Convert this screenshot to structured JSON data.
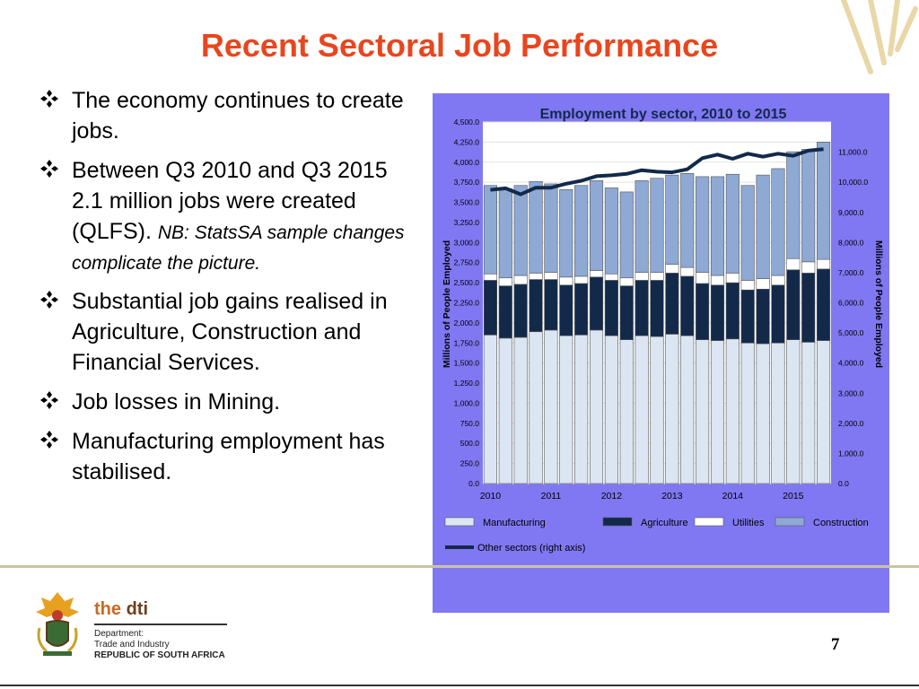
{
  "slide": {
    "title": "Recent Sectoral Job Performance",
    "page_number": "7",
    "bullets": [
      {
        "text": "The economy continues to create jobs.",
        "note": ""
      },
      {
        "text": "Between Q3 2010 and Q3 2015 2.1 million jobs were created (QLFS).",
        "note": "NB: StatsSA sample changes complicate the picture."
      },
      {
        "text": "Substantial job gains realised in Agriculture, Construction and Financial Services.",
        "note": ""
      },
      {
        "text": "Job losses in Mining.",
        "note": ""
      },
      {
        "text": "Manufacturing employment has stabilised.",
        "note": ""
      }
    ],
    "logo": {
      "brand_prefix": "the ",
      "brand_suffix": "dti",
      "dept_line1": "Department:",
      "dept_line2": "Trade and Industry",
      "country": "REPUBLIC OF SOUTH AFRICA"
    },
    "colors": {
      "title": "#e8461e",
      "panel": "#8078f2"
    }
  },
  "chart_data": {
    "type": "bar",
    "stacked": true,
    "title": "Employment by sector, 2010 to 2015",
    "ylabel": "Millions of People Employed",
    "y2label": "Millions of People Employed",
    "ylim": [
      0,
      4500
    ],
    "y2lim": [
      0,
      12000
    ],
    "yticks": [
      "0.0",
      "250.0",
      "500.0",
      "750.0",
      "1,000.0",
      "1,250.0",
      "1,500.0",
      "1,750.0",
      "2,000.0",
      "2,250.0",
      "2,500.0",
      "2,750.0",
      "3,000.0",
      "3,250.0",
      "3,500.0",
      "3,750.0",
      "4,000.0",
      "4,250.0",
      "4,500.0"
    ],
    "y2ticks": [
      "0.0",
      "1,000.0",
      "2,000.0",
      "3,000.0",
      "4,000.0",
      "5,000.0",
      "6,000.0",
      "7,000.0",
      "8,000.0",
      "9,000.0",
      "10,000.0",
      "11,000.0"
    ],
    "x_labels": [
      "2010",
      "2011",
      "2012",
      "2013",
      "2014",
      "2015"
    ],
    "x_label_positions": [
      0,
      4,
      8,
      12,
      16,
      20
    ],
    "series": [
      {
        "name": "Manufacturing",
        "color": "#dce6f2",
        "values": [
          1850,
          1810,
          1820,
          1890,
          1910,
          1840,
          1850,
          1910,
          1840,
          1790,
          1840,
          1830,
          1860,
          1840,
          1790,
          1780,
          1800,
          1750,
          1740,
          1750,
          1790,
          1760,
          1780
        ]
      },
      {
        "name": "Agriculture",
        "color": "#12294a",
        "values": [
          680,
          650,
          660,
          650,
          630,
          630,
          640,
          660,
          690,
          670,
          690,
          700,
          760,
          740,
          700,
          690,
          700,
          660,
          680,
          720,
          870,
          860,
          890
        ]
      },
      {
        "name": "Utilities",
        "color": "#ffffff",
        "values": [
          80,
          100,
          110,
          80,
          90,
          100,
          90,
          80,
          80,
          100,
          100,
          100,
          110,
          110,
          140,
          120,
          120,
          120,
          130,
          120,
          140,
          140,
          120
        ]
      },
      {
        "name": "Construction",
        "color": "#8ea9d4",
        "values": [
          1100,
          1110,
          1120,
          1140,
          1100,
          1090,
          1130,
          1120,
          1070,
          1070,
          1140,
          1170,
          1110,
          1170,
          1190,
          1230,
          1230,
          1180,
          1290,
          1330,
          1330,
          1400,
          1460
        ]
      },
      {
        "name": "Other sectors (right axis)",
        "axis": "right",
        "color": "#12294a",
        "values": [
          9750,
          9800,
          9600,
          9820,
          9820,
          9950,
          10050,
          10200,
          10230,
          10280,
          10400,
          10350,
          10330,
          10430,
          10800,
          10920,
          10780,
          10950,
          10850,
          10950,
          10880,
          11050,
          11100
        ]
      }
    ],
    "legend": {
      "placement": "bottom"
    }
  }
}
